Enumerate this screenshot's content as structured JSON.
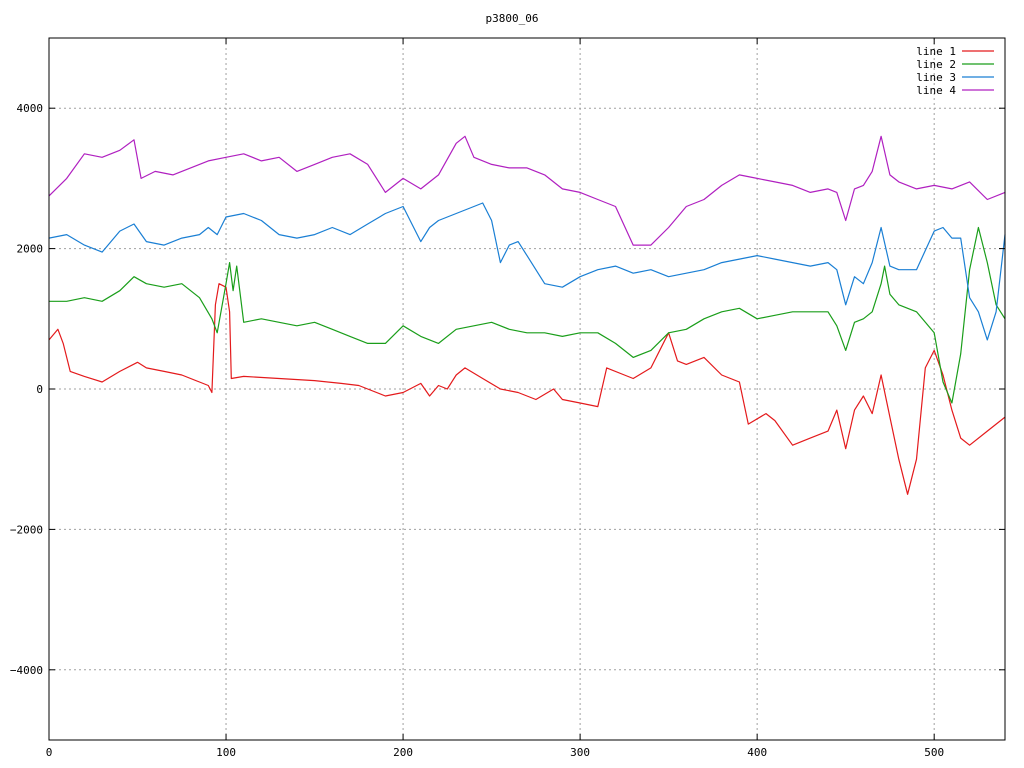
{
  "chart_data": {
    "type": "line",
    "title": "p3800_06",
    "xlabel": "",
    "ylabel": "",
    "xlim": [
      0,
      540
    ],
    "ylim": [
      -5000,
      5000
    ],
    "x_ticks": [
      0,
      100,
      200,
      300,
      400,
      500
    ],
    "y_ticks": [
      -4000,
      -2000,
      0,
      2000,
      4000
    ],
    "grid": true,
    "legend_position": "top-right",
    "series": [
      {
        "name": "line 1",
        "color": "#e41a1c",
        "points": [
          [
            0,
            700
          ],
          [
            5,
            850
          ],
          [
            8,
            650
          ],
          [
            12,
            250
          ],
          [
            20,
            180
          ],
          [
            30,
            100
          ],
          [
            40,
            250
          ],
          [
            50,
            380
          ],
          [
            55,
            300
          ],
          [
            65,
            250
          ],
          [
            75,
            200
          ],
          [
            85,
            100
          ],
          [
            90,
            50
          ],
          [
            92,
            -50
          ],
          [
            94,
            1200
          ],
          [
            96,
            1500
          ],
          [
            100,
            1450
          ],
          [
            102,
            1100
          ],
          [
            103,
            150
          ],
          [
            110,
            180
          ],
          [
            130,
            150
          ],
          [
            150,
            120
          ],
          [
            165,
            80
          ],
          [
            175,
            50
          ],
          [
            180,
            0
          ],
          [
            190,
            -100
          ],
          [
            200,
            -50
          ],
          [
            210,
            80
          ],
          [
            215,
            -100
          ],
          [
            220,
            50
          ],
          [
            225,
            0
          ],
          [
            230,
            200
          ],
          [
            235,
            300
          ],
          [
            245,
            150
          ],
          [
            255,
            0
          ],
          [
            265,
            -50
          ],
          [
            275,
            -150
          ],
          [
            285,
            0
          ],
          [
            290,
            -150
          ],
          [
            300,
            -200
          ],
          [
            310,
            -250
          ],
          [
            315,
            300
          ],
          [
            325,
            200
          ],
          [
            330,
            150
          ],
          [
            340,
            300
          ],
          [
            350,
            800
          ],
          [
            355,
            400
          ],
          [
            360,
            350
          ],
          [
            370,
            450
          ],
          [
            380,
            200
          ],
          [
            390,
            100
          ],
          [
            395,
            -500
          ],
          [
            405,
            -350
          ],
          [
            410,
            -450
          ],
          [
            420,
            -800
          ],
          [
            430,
            -700
          ],
          [
            440,
            -600
          ],
          [
            445,
            -300
          ],
          [
            450,
            -850
          ],
          [
            455,
            -300
          ],
          [
            460,
            -100
          ],
          [
            465,
            -350
          ],
          [
            470,
            200
          ],
          [
            475,
            -400
          ],
          [
            480,
            -1000
          ],
          [
            485,
            -1500
          ],
          [
            490,
            -1000
          ],
          [
            495,
            300
          ],
          [
            500,
            550
          ],
          [
            505,
            200
          ],
          [
            510,
            -300
          ],
          [
            515,
            -700
          ],
          [
            520,
            -800
          ],
          [
            530,
            -600
          ],
          [
            540,
            -400
          ]
        ]
      },
      {
        "name": "line 2",
        "color": "#1a9e1a",
        "points": [
          [
            0,
            1250
          ],
          [
            10,
            1250
          ],
          [
            20,
            1300
          ],
          [
            30,
            1250
          ],
          [
            40,
            1400
          ],
          [
            48,
            1600
          ],
          [
            55,
            1500
          ],
          [
            65,
            1450
          ],
          [
            75,
            1500
          ],
          [
            85,
            1300
          ],
          [
            92,
            1000
          ],
          [
            95,
            800
          ],
          [
            100,
            1500
          ],
          [
            102,
            1800
          ],
          [
            104,
            1400
          ],
          [
            106,
            1750
          ],
          [
            110,
            950
          ],
          [
            120,
            1000
          ],
          [
            130,
            950
          ],
          [
            140,
            900
          ],
          [
            150,
            950
          ],
          [
            160,
            850
          ],
          [
            170,
            750
          ],
          [
            180,
            650
          ],
          [
            190,
            650
          ],
          [
            200,
            900
          ],
          [
            210,
            750
          ],
          [
            220,
            650
          ],
          [
            230,
            850
          ],
          [
            240,
            900
          ],
          [
            250,
            950
          ],
          [
            260,
            850
          ],
          [
            270,
            800
          ],
          [
            280,
            800
          ],
          [
            290,
            750
          ],
          [
            300,
            800
          ],
          [
            310,
            800
          ],
          [
            320,
            650
          ],
          [
            330,
            450
          ],
          [
            340,
            550
          ],
          [
            350,
            800
          ],
          [
            360,
            850
          ],
          [
            370,
            1000
          ],
          [
            380,
            1100
          ],
          [
            390,
            1150
          ],
          [
            400,
            1000
          ],
          [
            410,
            1050
          ],
          [
            420,
            1100
          ],
          [
            430,
            1100
          ],
          [
            440,
            1100
          ],
          [
            445,
            900
          ],
          [
            450,
            550
          ],
          [
            455,
            950
          ],
          [
            460,
            1000
          ],
          [
            465,
            1100
          ],
          [
            470,
            1500
          ],
          [
            472,
            1750
          ],
          [
            475,
            1350
          ],
          [
            480,
            1200
          ],
          [
            490,
            1100
          ],
          [
            500,
            800
          ],
          [
            505,
            100
          ],
          [
            510,
            -200
          ],
          [
            515,
            500
          ],
          [
            520,
            1700
          ],
          [
            525,
            2300
          ],
          [
            530,
            1800
          ],
          [
            535,
            1200
          ],
          [
            540,
            1000
          ]
        ]
      },
      {
        "name": "line 3",
        "color": "#1a7fd4",
        "points": [
          [
            0,
            2150
          ],
          [
            10,
            2200
          ],
          [
            20,
            2050
          ],
          [
            30,
            1950
          ],
          [
            40,
            2250
          ],
          [
            48,
            2350
          ],
          [
            55,
            2100
          ],
          [
            65,
            2050
          ],
          [
            75,
            2150
          ],
          [
            85,
            2200
          ],
          [
            90,
            2300
          ],
          [
            95,
            2200
          ],
          [
            100,
            2450
          ],
          [
            110,
            2500
          ],
          [
            120,
            2400
          ],
          [
            130,
            2200
          ],
          [
            140,
            2150
          ],
          [
            150,
            2200
          ],
          [
            160,
            2300
          ],
          [
            170,
            2200
          ],
          [
            180,
            2350
          ],
          [
            190,
            2500
          ],
          [
            200,
            2600
          ],
          [
            205,
            2350
          ],
          [
            210,
            2100
          ],
          [
            215,
            2300
          ],
          [
            220,
            2400
          ],
          [
            230,
            2500
          ],
          [
            240,
            2600
          ],
          [
            245,
            2650
          ],
          [
            250,
            2400
          ],
          [
            255,
            1800
          ],
          [
            260,
            2050
          ],
          [
            265,
            2100
          ],
          [
            270,
            1900
          ],
          [
            280,
            1500
          ],
          [
            290,
            1450
          ],
          [
            300,
            1600
          ],
          [
            310,
            1700
          ],
          [
            320,
            1750
          ],
          [
            330,
            1650
          ],
          [
            340,
            1700
          ],
          [
            350,
            1600
          ],
          [
            360,
            1650
          ],
          [
            370,
            1700
          ],
          [
            380,
            1800
          ],
          [
            390,
            1850
          ],
          [
            400,
            1900
          ],
          [
            410,
            1850
          ],
          [
            420,
            1800
          ],
          [
            430,
            1750
          ],
          [
            440,
            1800
          ],
          [
            445,
            1700
          ],
          [
            450,
            1200
          ],
          [
            455,
            1600
          ],
          [
            460,
            1500
          ],
          [
            465,
            1800
          ],
          [
            470,
            2300
          ],
          [
            475,
            1750
          ],
          [
            480,
            1700
          ],
          [
            490,
            1700
          ],
          [
            500,
            2250
          ],
          [
            505,
            2300
          ],
          [
            510,
            2150
          ],
          [
            515,
            2150
          ],
          [
            520,
            1300
          ],
          [
            525,
            1100
          ],
          [
            530,
            700
          ],
          [
            535,
            1100
          ],
          [
            540,
            2200
          ]
        ]
      },
      {
        "name": "line 4",
        "color": "#b020c0",
        "points": [
          [
            0,
            2750
          ],
          [
            10,
            3000
          ],
          [
            20,
            3350
          ],
          [
            30,
            3300
          ],
          [
            40,
            3400
          ],
          [
            48,
            3550
          ],
          [
            52,
            3000
          ],
          [
            60,
            3100
          ],
          [
            70,
            3050
          ],
          [
            80,
            3150
          ],
          [
            90,
            3250
          ],
          [
            100,
            3300
          ],
          [
            110,
            3350
          ],
          [
            120,
            3250
          ],
          [
            130,
            3300
          ],
          [
            140,
            3100
          ],
          [
            150,
            3200
          ],
          [
            160,
            3300
          ],
          [
            170,
            3350
          ],
          [
            180,
            3200
          ],
          [
            190,
            2800
          ],
          [
            200,
            3000
          ],
          [
            210,
            2850
          ],
          [
            220,
            3050
          ],
          [
            230,
            3500
          ],
          [
            235,
            3600
          ],
          [
            240,
            3300
          ],
          [
            250,
            3200
          ],
          [
            260,
            3150
          ],
          [
            270,
            3150
          ],
          [
            280,
            3050
          ],
          [
            290,
            2850
          ],
          [
            300,
            2800
          ],
          [
            310,
            2700
          ],
          [
            320,
            2600
          ],
          [
            330,
            2050
          ],
          [
            340,
            2050
          ],
          [
            350,
            2300
          ],
          [
            360,
            2600
          ],
          [
            370,
            2700
          ],
          [
            380,
            2900
          ],
          [
            390,
            3050
          ],
          [
            400,
            3000
          ],
          [
            410,
            2950
          ],
          [
            420,
            2900
          ],
          [
            430,
            2800
          ],
          [
            440,
            2850
          ],
          [
            445,
            2800
          ],
          [
            450,
            2400
          ],
          [
            455,
            2850
          ],
          [
            460,
            2900
          ],
          [
            465,
            3100
          ],
          [
            470,
            3600
          ],
          [
            475,
            3050
          ],
          [
            480,
            2950
          ],
          [
            490,
            2850
          ],
          [
            500,
            2900
          ],
          [
            510,
            2850
          ],
          [
            520,
            2950
          ],
          [
            530,
            2700
          ],
          [
            540,
            2800
          ]
        ]
      }
    ]
  }
}
